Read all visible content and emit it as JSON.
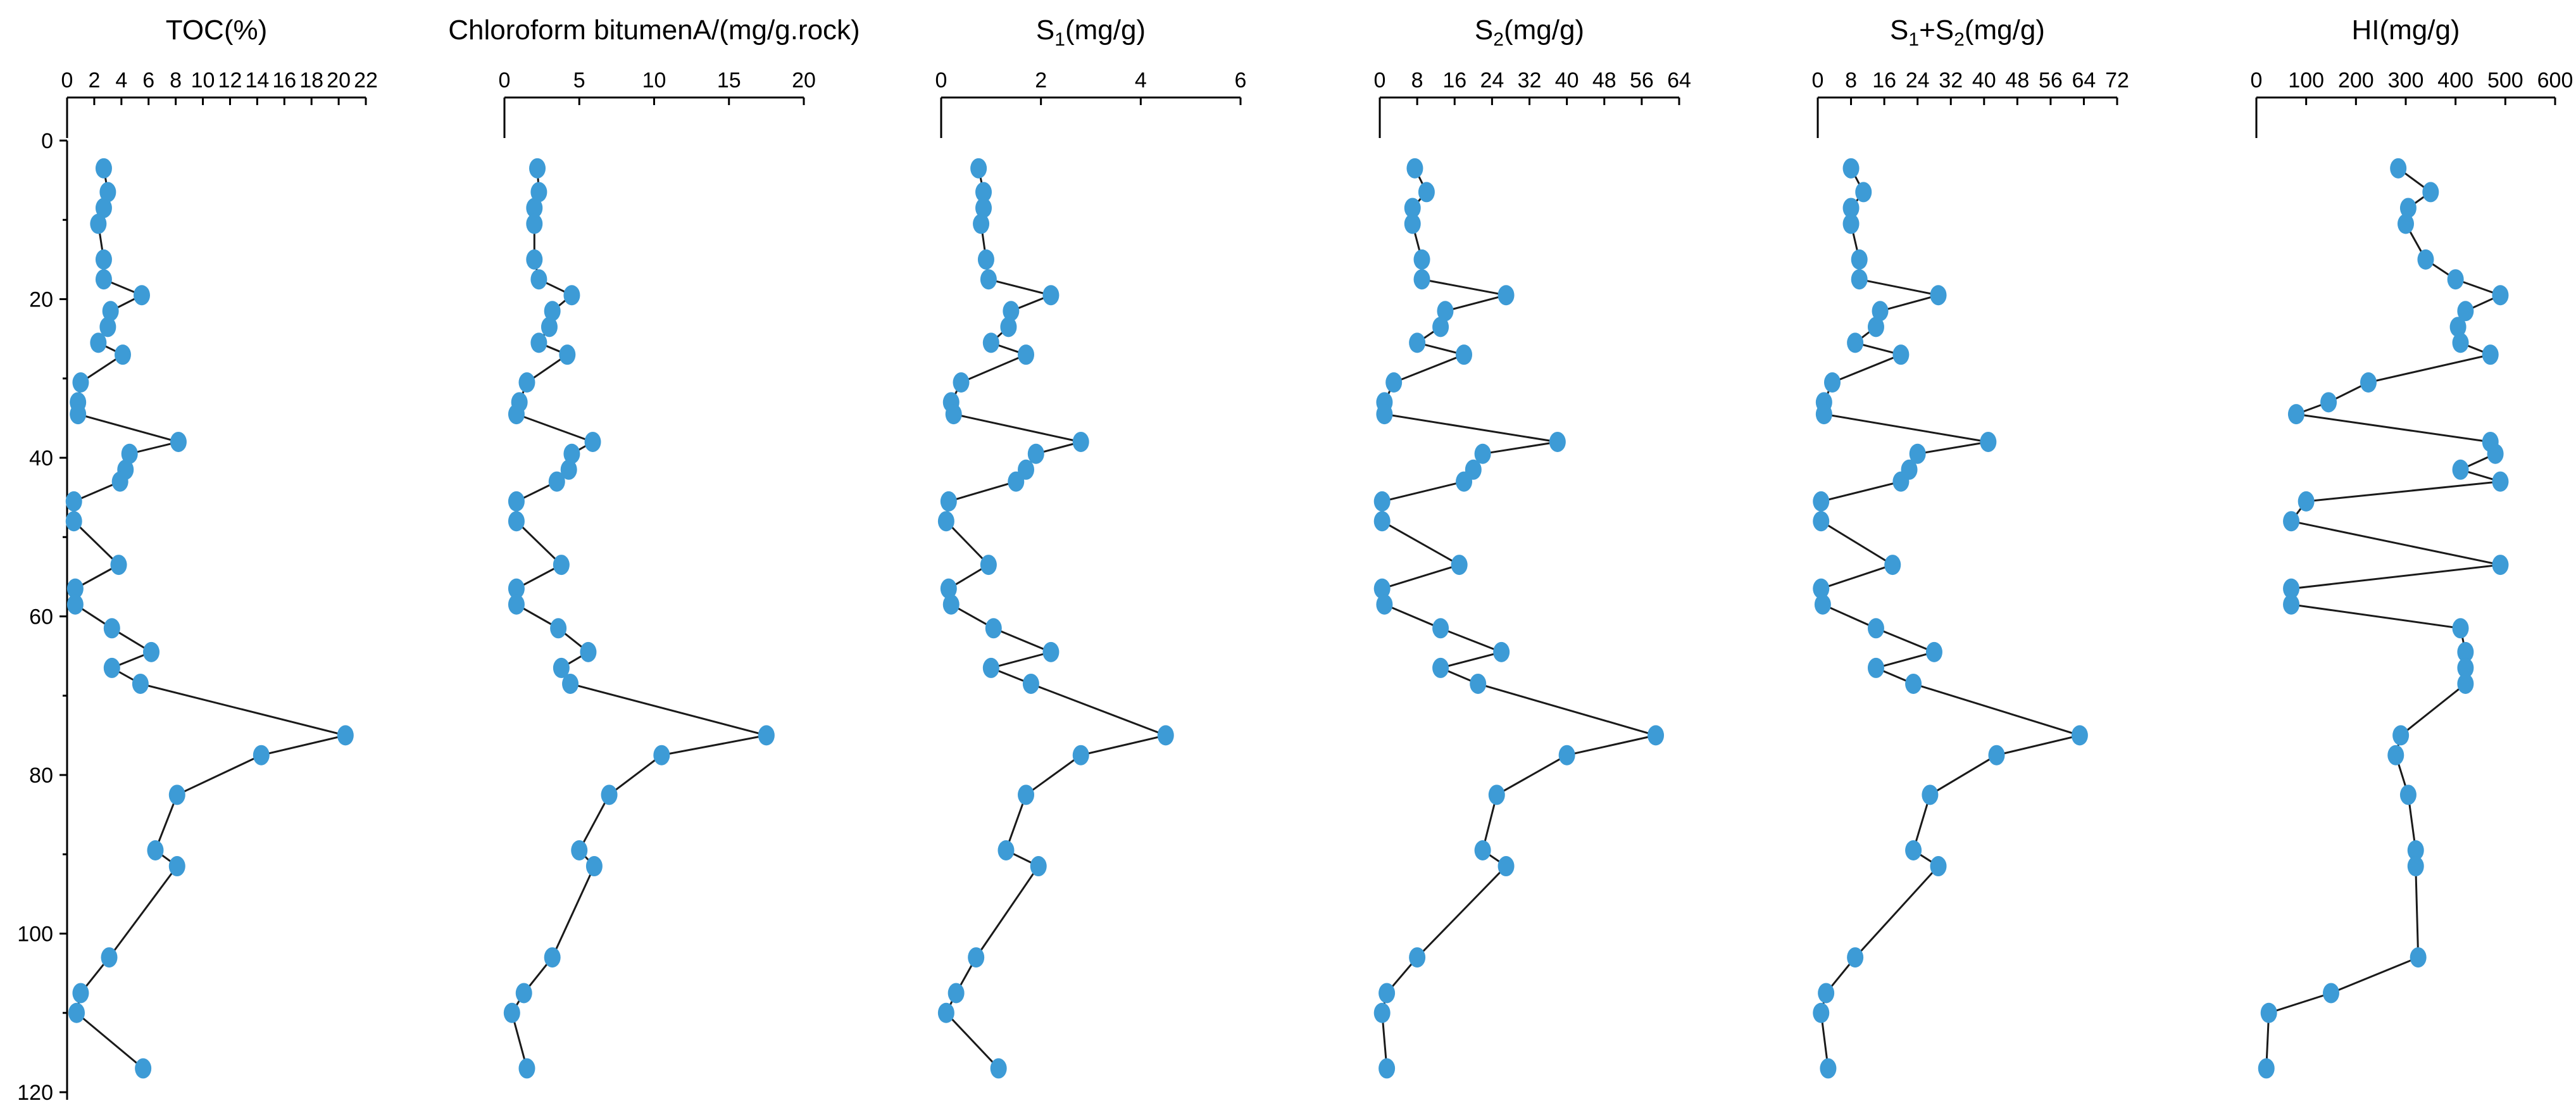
{
  "colors": {
    "point": "#3d9bd6",
    "line": "#1a1a1a",
    "axis": "#000000"
  },
  "chart_data": {
    "type": "line",
    "depth_axis": {
      "ylim": [
        0,
        120
      ],
      "ticks": [
        "0",
        "20",
        "40",
        "60",
        "80",
        "100",
        "120"
      ]
    },
    "depth": [
      3.5,
      6.5,
      8.5,
      10.5,
      15,
      17.5,
      19.5,
      21.5,
      23.5,
      25.5,
      27,
      30.5,
      33,
      34.5,
      38,
      39.5,
      41.5,
      43,
      45.5,
      48,
      53.5,
      56.5,
      58.5,
      61.5,
      64.5,
      66.5,
      68.5,
      75,
      77.5,
      82.5,
      89.5,
      91.5,
      103,
      107.5,
      110,
      117
    ],
    "panels": [
      {
        "title": "TOC(%)",
        "xlim": [
          0,
          22
        ],
        "ticks": [
          "0",
          "2",
          "4",
          "6",
          "8",
          "10",
          "12",
          "14",
          "16",
          "18",
          "20",
          "22"
        ],
        "values": [
          2.7,
          3.0,
          2.7,
          2.3,
          2.7,
          2.7,
          5.5,
          3.2,
          3.0,
          2.3,
          4.1,
          1.0,
          0.8,
          0.8,
          8.2,
          4.6,
          4.3,
          3.9,
          0.5,
          0.5,
          3.8,
          0.6,
          0.6,
          3.3,
          6.2,
          3.3,
          5.4,
          20.5,
          14.3,
          8.1,
          6.5,
          8.1,
          3.1,
          1.0,
          0.7,
          5.6
        ]
      },
      {
        "title": "Chloroform bitumenA/(mg/g.rock)",
        "xlim": [
          0,
          20
        ],
        "ticks": [
          "0",
          "5",
          "10",
          "15",
          "20"
        ],
        "values": [
          2.2,
          2.3,
          2.0,
          2.0,
          2.0,
          2.3,
          4.5,
          3.2,
          3.0,
          2.3,
          4.2,
          1.5,
          1.0,
          0.8,
          5.9,
          4.5,
          4.3,
          3.5,
          0.8,
          0.8,
          3.8,
          0.8,
          0.8,
          3.6,
          5.6,
          3.8,
          4.4,
          17.5,
          10.5,
          7.0,
          5.0,
          6.0,
          3.2,
          1.3,
          0.5,
          1.5
        ]
      },
      {
        "title": "S1(mg/g)",
        "title_main": "S",
        "title_sub": "1",
        "title_rest": "(mg/g)",
        "xlim": [
          0,
          6
        ],
        "ticks": [
          "0",
          "2",
          "4",
          "6"
        ],
        "values": [
          0.75,
          0.85,
          0.85,
          0.8,
          0.9,
          0.95,
          2.2,
          1.4,
          1.35,
          1.0,
          1.7,
          0.4,
          0.2,
          0.25,
          2.8,
          1.9,
          1.7,
          1.5,
          0.15,
          0.1,
          0.95,
          0.15,
          0.2,
          1.05,
          2.2,
          1.0,
          1.8,
          4.5,
          2.8,
          1.7,
          1.3,
          1.95,
          0.7,
          0.3,
          0.1,
          1.15
        ]
      },
      {
        "title": "S2(mg/g)",
        "title_main": "S",
        "title_sub": "2",
        "title_rest": "(mg/g)",
        "xlim": [
          0,
          64
        ],
        "ticks": [
          "0",
          "8",
          "16",
          "24",
          "32",
          "40",
          "48",
          "56",
          "64"
        ],
        "values": [
          7.5,
          10.0,
          7.0,
          7.0,
          9.0,
          9.0,
          27.0,
          14.0,
          13.0,
          8.0,
          18.0,
          3.0,
          1.0,
          1.0,
          38.0,
          22.0,
          20.0,
          18.0,
          0.5,
          0.5,
          17.0,
          0.5,
          1.0,
          13.0,
          26.0,
          13.0,
          21.0,
          59.0,
          40.0,
          25.0,
          22.0,
          27.0,
          8.0,
          1.5,
          0.5,
          1.5
        ]
      },
      {
        "title": "S1+S2(mg/g)",
        "title_main": "S",
        "title_sub": "1",
        "title_plus": "+S",
        "title_sub2": "2",
        "title_rest": "(mg/g)",
        "xlim": [
          0,
          72
        ],
        "ticks": [
          "0",
          "8",
          "16",
          "24",
          "32",
          "40",
          "48",
          "56",
          "64",
          "72"
        ],
        "values": [
          8.0,
          11.0,
          8.0,
          8.0,
          10.0,
          10.0,
          29.0,
          15.0,
          14.0,
          9.0,
          20.0,
          3.5,
          1.5,
          1.5,
          41.0,
          24.0,
          22.0,
          20.0,
          0.8,
          0.8,
          18.0,
          0.8,
          1.2,
          14.0,
          28.0,
          14.0,
          23.0,
          63.0,
          43.0,
          27.0,
          23.0,
          29.0,
          9.0,
          2.0,
          0.8,
          2.5
        ]
      },
      {
        "title": "HI(mg/g)",
        "xlim": [
          0,
          600
        ],
        "ticks": [
          "0",
          "100",
          "200",
          "300",
          "400",
          "500",
          "600"
        ],
        "values": [
          285,
          350,
          305,
          300,
          340,
          400,
          490,
          420,
          405,
          410,
          470,
          225,
          145,
          80,
          470,
          480,
          410,
          490,
          100,
          70,
          490,
          70,
          70,
          410,
          420,
          420,
          420,
          290,
          280,
          305,
          320,
          320,
          325,
          150,
          25,
          20
        ]
      }
    ]
  }
}
